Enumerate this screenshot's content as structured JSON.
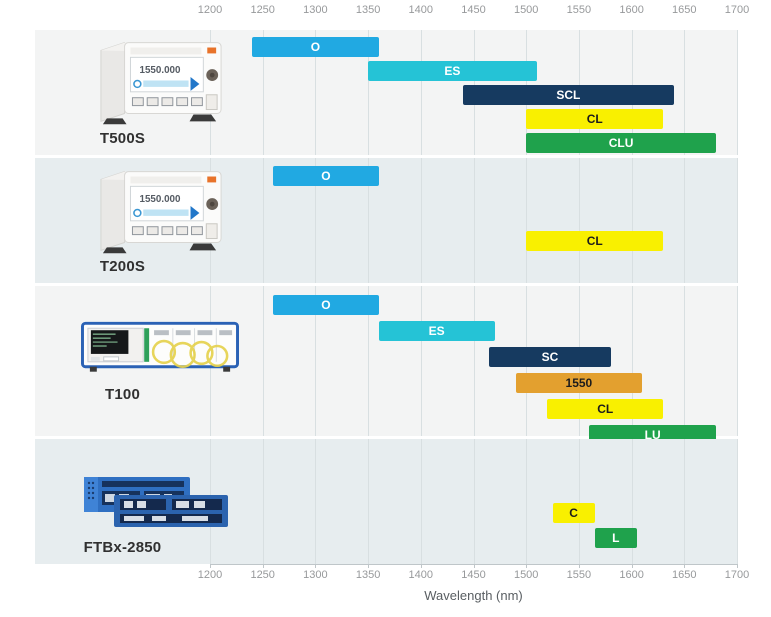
{
  "axis": {
    "xlabel": "Wavelength (nm)",
    "tick_labels": [
      "1200",
      "1250",
      "1300",
      "1350",
      "1400",
      "1450",
      "1500",
      "1550",
      "1600",
      "1650",
      "1700"
    ]
  },
  "products": [
    {
      "name": "T500S",
      "image": "benchtop-tunable-laser",
      "screen_text": "1550.000"
    },
    {
      "name": "T200S",
      "image": "benchtop-tunable-laser",
      "screen_text": "1550.000"
    },
    {
      "name": "T100",
      "image": "rack-tunable-laser",
      "screen_text": ""
    },
    {
      "name": "FTBx-2850",
      "image": "module-card",
      "screen_text": ""
    }
  ],
  "chart_data": {
    "type": "bar",
    "variant": "horizontal-range",
    "xlabel": "Wavelength (nm)",
    "xlim": [
      1200,
      1700
    ],
    "xticks": [
      1200,
      1250,
      1300,
      1350,
      1400,
      1450,
      1500,
      1550,
      1600,
      1650,
      1700
    ],
    "grid": true,
    "legend": "none",
    "series": [
      {
        "name": "T500S",
        "bands": [
          {
            "label": "O",
            "range": [
              1240,
              1360
            ],
            "color": "#21A9E2",
            "text_color": "#FFFFFF",
            "slot": 0
          },
          {
            "label": "ES",
            "range": [
              1350,
              1510
            ],
            "color": "#25C3D6",
            "text_color": "#FFFFFF",
            "slot": 1
          },
          {
            "label": "SCL",
            "range": [
              1440,
              1640
            ],
            "color": "#163A60",
            "text_color": "#FFFFFF",
            "slot": 2
          },
          {
            "label": "CL",
            "range": [
              1500,
              1630
            ],
            "color": "#F9F000",
            "text_color": "#1C1C1C",
            "slot": 3
          },
          {
            "label": "CLU",
            "range": [
              1500,
              1680
            ],
            "color": "#1FA24C",
            "text_color": "#FFFFFF",
            "slot": 4
          }
        ]
      },
      {
        "name": "T200S",
        "bands": [
          {
            "label": "O",
            "range": [
              1260,
              1360
            ],
            "color": "#21A9E2",
            "text_color": "#FFFFFF",
            "slot": 0
          },
          {
            "label": "CL",
            "range": [
              1500,
              1630
            ],
            "color": "#F9F000",
            "text_color": "#1C1C1C",
            "slot": 2.7
          }
        ]
      },
      {
        "name": "T100",
        "bands": [
          {
            "label": "O",
            "range": [
              1260,
              1360
            ],
            "color": "#21A9E2",
            "text_color": "#FFFFFF",
            "slot": 0
          },
          {
            "label": "ES",
            "range": [
              1360,
              1470
            ],
            "color": "#25C3D6",
            "text_color": "#FFFFFF",
            "slot": 1
          },
          {
            "label": "SC",
            "range": [
              1465,
              1580
            ],
            "color": "#163A60",
            "text_color": "#FFFFFF",
            "slot": 2
          },
          {
            "label": "1550",
            "range": [
              1490,
              1610
            ],
            "color": "#E3A02F",
            "text_color": "#1C1C1C",
            "slot": 3
          },
          {
            "label": "CL",
            "range": [
              1520,
              1630
            ],
            "color": "#F9F000",
            "text_color": "#1C1C1C",
            "slot": 4
          },
          {
            "label": "LU",
            "range": [
              1560,
              1680
            ],
            "color": "#1FA24C",
            "text_color": "#FFFFFF",
            "slot": 5
          }
        ]
      },
      {
        "name": "FTBx-2850",
        "bands": [
          {
            "label": "C",
            "range": [
              1525,
              1565
            ],
            "color": "#F9F000",
            "text_color": "#1C1C1C",
            "slot": 2.33
          },
          {
            "label": "L",
            "range": [
              1565,
              1605
            ],
            "color": "#1FA24C",
            "text_color": "#FFFFFF",
            "slot": 3.38
          }
        ]
      }
    ],
    "row_background_colors": [
      "#F3F4F4",
      "#E7EDEF",
      "#F3F4F4",
      "#E7EDEF"
    ]
  },
  "colors": {
    "grid_line": "#D8DFE1",
    "axis_line": "#BFC6C9",
    "tick_text": "#97999B",
    "caption_text": "#595E62",
    "product_label_text": "#303030"
  }
}
